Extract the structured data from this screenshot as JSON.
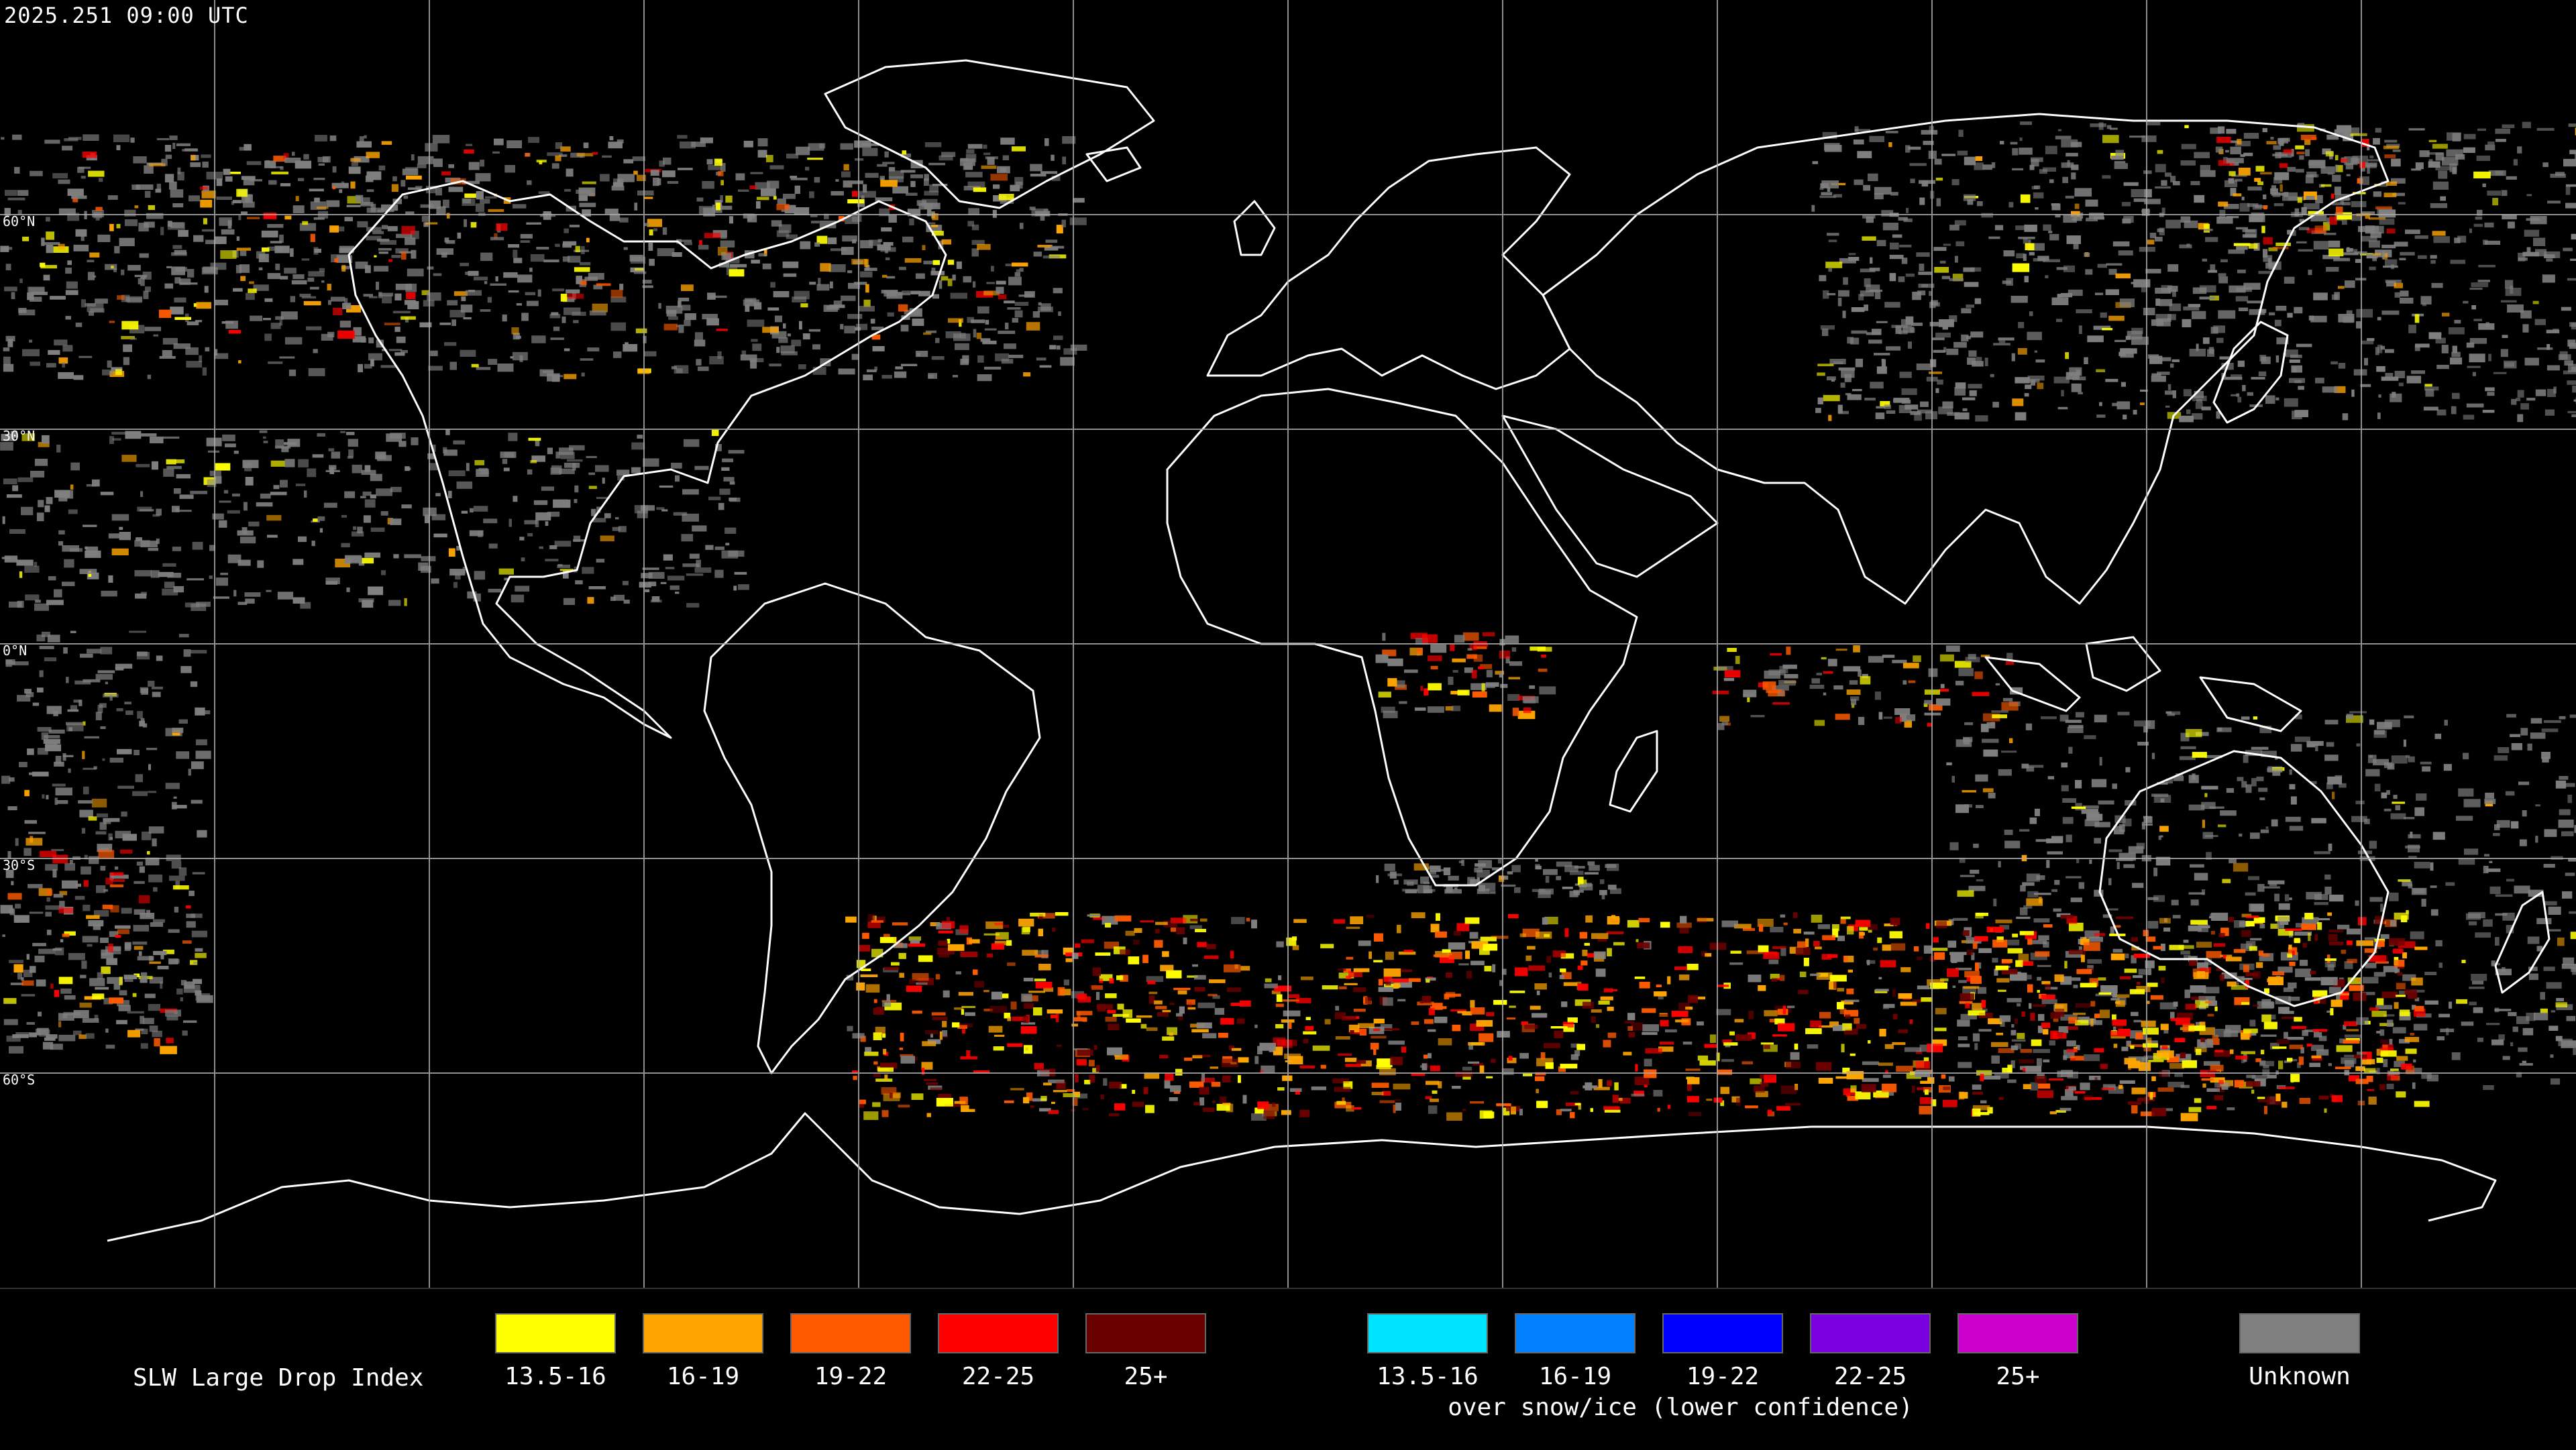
{
  "timestamp": "2025.251 09:00 UTC",
  "latitude_labels": [
    {
      "label": "60°N",
      "lat": 60
    },
    {
      "label": "30°N",
      "lat": 30
    },
    {
      "label": "0°N",
      "lat": 0
    },
    {
      "label": "30°S",
      "lat": -30
    },
    {
      "label": "60°S",
      "lat": -60
    }
  ],
  "legend": {
    "title": "SLW Large Drop Index",
    "water": [
      {
        "label": "13.5-16",
        "color": "#ffff00"
      },
      {
        "label": "16-19",
        "color": "#ffa500"
      },
      {
        "label": "19-22",
        "color": "#ff5a00"
      },
      {
        "label": "22-25",
        "color": "#ff0000"
      },
      {
        "label": "25+",
        "color": "#6b0000"
      }
    ],
    "snow_ice": [
      {
        "label": "13.5-16",
        "color": "#00e5ff"
      },
      {
        "label": "16-19",
        "color": "#0080ff"
      },
      {
        "label": "19-22",
        "color": "#0000ff"
      },
      {
        "label": "22-25",
        "color": "#7a00e0"
      },
      {
        "label": "25+",
        "color": "#cc00cc"
      }
    ],
    "snow_ice_note": "over snow/ice (lower confidence)",
    "unknown": {
      "label": "Unknown",
      "color": "#808080"
    }
  }
}
